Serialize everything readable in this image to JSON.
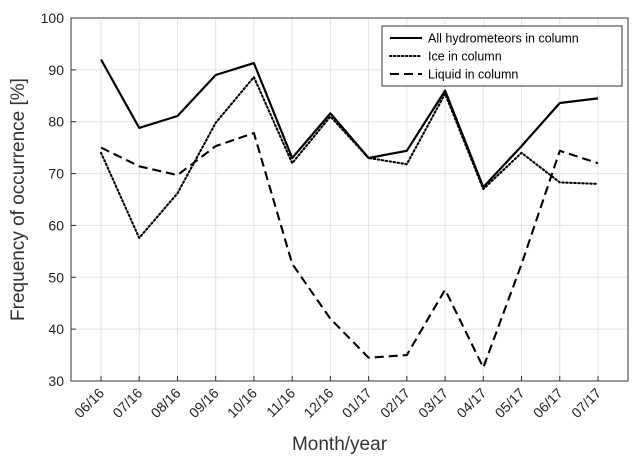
{
  "chart_data": {
    "type": "line",
    "xlabel": "Month/year",
    "ylabel": "Frequency of occurrence [%]",
    "ylim": [
      30,
      100
    ],
    "yticks": [
      30,
      40,
      50,
      60,
      70,
      80,
      90,
      100
    ],
    "grid": true,
    "legend_position": "top-right",
    "categories": [
      "06/16",
      "07/16",
      "08/16",
      "09/16",
      "10/16",
      "11/16",
      "12/16",
      "01/17",
      "02/17",
      "03/17",
      "04/17",
      "05/17",
      "06/17",
      "07/17"
    ],
    "series": [
      {
        "name": "All hydrometeors in column",
        "style": "solid",
        "values": [
          92.0,
          78.8,
          81.1,
          89.0,
          91.3,
          73.0,
          81.6,
          73.0,
          74.4,
          86.0,
          67.4,
          75.3,
          83.6,
          84.5
        ]
      },
      {
        "name": "Ice in column",
        "style": "dotted",
        "values": [
          74.0,
          57.6,
          66.2,
          79.8,
          88.6,
          72.0,
          81.0,
          73.0,
          71.8,
          85.4,
          67.0,
          74.0,
          68.3,
          68.0
        ]
      },
      {
        "name": "Liquid in column",
        "style": "dashed",
        "values": [
          75.0,
          71.4,
          69.7,
          75.3,
          77.8,
          52.6,
          42.0,
          34.5,
          35.0,
          47.6,
          32.6,
          52.5,
          74.4,
          72.0
        ]
      }
    ],
    "colors": {
      "line": "#000000",
      "grid": "#e3e3e3",
      "axis": "#333333"
    }
  }
}
